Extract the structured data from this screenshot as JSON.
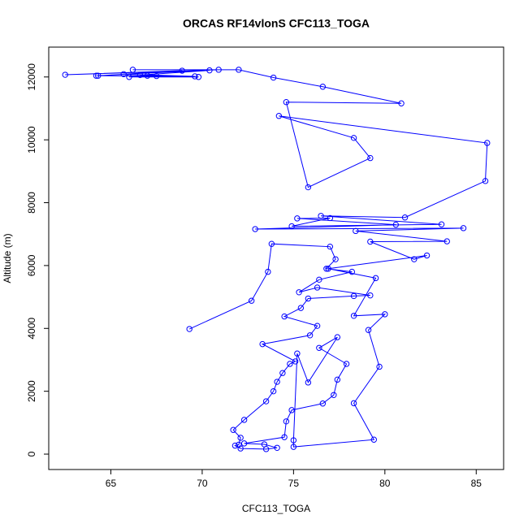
{
  "chart_data": {
    "type": "line",
    "title": "ORCAS RF14vlonS CFC113_TOGA",
    "x_label": "CFC113_TOGA",
    "y_label": "Altitude (m)",
    "xlim": [
      61.6,
      86.5
    ],
    "ylim": [
      -490,
      12950
    ],
    "xticks": [
      65,
      70,
      75,
      80,
      85
    ],
    "yticks": [
      0,
      2000,
      4000,
      6000,
      8000,
      10000,
      12000
    ],
    "series": [
      {
        "color": "#0000ff",
        "x": [
          69.3,
          72.7,
          73.6,
          73.8,
          77.0,
          77.3,
          76.8,
          78.2,
          76.4,
          75.3,
          76.3,
          79.2,
          78.3,
          75.8,
          75.4,
          74.5,
          76.3,
          75.9,
          73.3,
          75.1,
          74.8,
          74.4,
          74.1,
          73.9,
          73.5,
          72.3,
          71.7,
          72.1,
          72.0,
          71.8,
          72.1,
          73.5,
          74.1,
          73.4,
          72.3,
          74.5,
          74.6,
          74.9,
          76.6,
          77.2,
          77.4,
          77.9,
          76.4,
          77.4,
          75.8,
          75.2,
          75.0,
          75.0,
          79.4,
          78.3,
          79.7,
          79.1,
          80.0,
          78.3,
          79.5,
          76.9,
          82.3,
          81.6,
          79.2,
          83.4,
          78.4,
          84.3,
          72.9,
          80.6,
          75.2,
          77.0,
          74.9,
          83.1,
          76.5,
          81.1,
          85.5,
          85.6,
          74.2,
          78.3,
          79.2,
          75.8,
          74.6,
          80.9,
          76.6,
          73.9,
          72.0,
          66.2,
          70.9,
          62.5,
          68.9,
          64.3,
          69.6,
          65.7,
          70.4,
          66.6,
          67.5,
          66.0,
          69.8,
          67.0,
          64.2
        ],
        "values": [
          3980,
          4880,
          5800,
          6690,
          6600,
          6200,
          5900,
          5800,
          5550,
          5150,
          5300,
          5050,
          5030,
          4950,
          4650,
          4380,
          4080,
          3780,
          3500,
          2950,
          2870,
          2580,
          2300,
          2000,
          1680,
          1090,
          770,
          520,
          300,
          270,
          180,
          160,
          200,
          310,
          340,
          540,
          1040,
          1400,
          1610,
          1880,
          2370,
          2870,
          3380,
          3720,
          2280,
          3200,
          440,
          230,
          460,
          1620,
          2780,
          3950,
          4450,
          4400,
          5600,
          5900,
          6320,
          6200,
          6760,
          6770,
          7100,
          7190,
          7160,
          7300,
          7500,
          7510,
          7250,
          7310,
          7580,
          7530,
          8690,
          9900,
          10760,
          10060,
          9420,
          8490,
          11200,
          11160,
          11690,
          11980,
          12230,
          12230,
          12230,
          12070,
          12200,
          12040,
          12020,
          12090,
          12210,
          12060,
          12030,
          12000,
          12000,
          12040,
          12040
        ]
      }
    ]
  }
}
